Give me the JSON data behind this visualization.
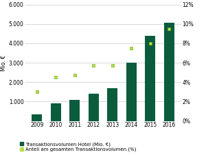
{
  "years": [
    "2009",
    "2010",
    "2011",
    "2012",
    "2013",
    "2014",
    "2015",
    "2016"
  ],
  "bar_values": [
    350,
    900,
    1100,
    1400,
    1700,
    3000,
    4400,
    5050
  ],
  "line_values": [
    3.0,
    4.5,
    4.7,
    5.7,
    5.7,
    7.5,
    8.0,
    9.5
  ],
  "bar_color": "#0a5c3c",
  "dot_color": "#b8e04a",
  "dot_edge_color": "#7aad1a",
  "ylabel_left": "Mio. €",
  "ylim_left": [
    0,
    6000
  ],
  "ylim_right": [
    0,
    12
  ],
  "yticks_left": [
    0,
    1000,
    2000,
    3000,
    4000,
    5000,
    6000
  ],
  "ytick_labels_left": [
    "",
    "1.000",
    "2.000",
    "3.000",
    "4.000",
    "5.000",
    "6.000"
  ],
  "yticks_right": [
    0,
    2,
    4,
    6,
    8,
    10,
    12
  ],
  "ytick_labels_right": [
    "0%",
    "2%",
    "4%",
    "6%",
    "8%",
    "10%",
    "12%"
  ],
  "legend_bar": "Transaktionsvolumen Hotel (Mio. €)",
  "legend_dot": "Anteil am gesamten Transaktionsvolumen (%)",
  "background_color": "#ffffff",
  "grid_color": "#cccccc",
  "axis_fontsize": 5.5,
  "legend_fontsize": 5.0
}
